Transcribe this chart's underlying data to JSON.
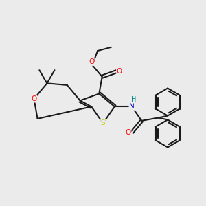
{
  "background_color": "#ebebeb",
  "bond_color": "#1a1a1a",
  "bond_width": 1.5,
  "O_color": "#ff0000",
  "S_color": "#cccc00",
  "N_color": "#0000cc",
  "H_color": "#008080",
  "C_color": "#1a1a1a",
  "figsize": [
    3.0,
    3.0
  ],
  "dpi": 100,
  "xlim": [
    0,
    10
  ],
  "ylim": [
    0,
    10
  ]
}
